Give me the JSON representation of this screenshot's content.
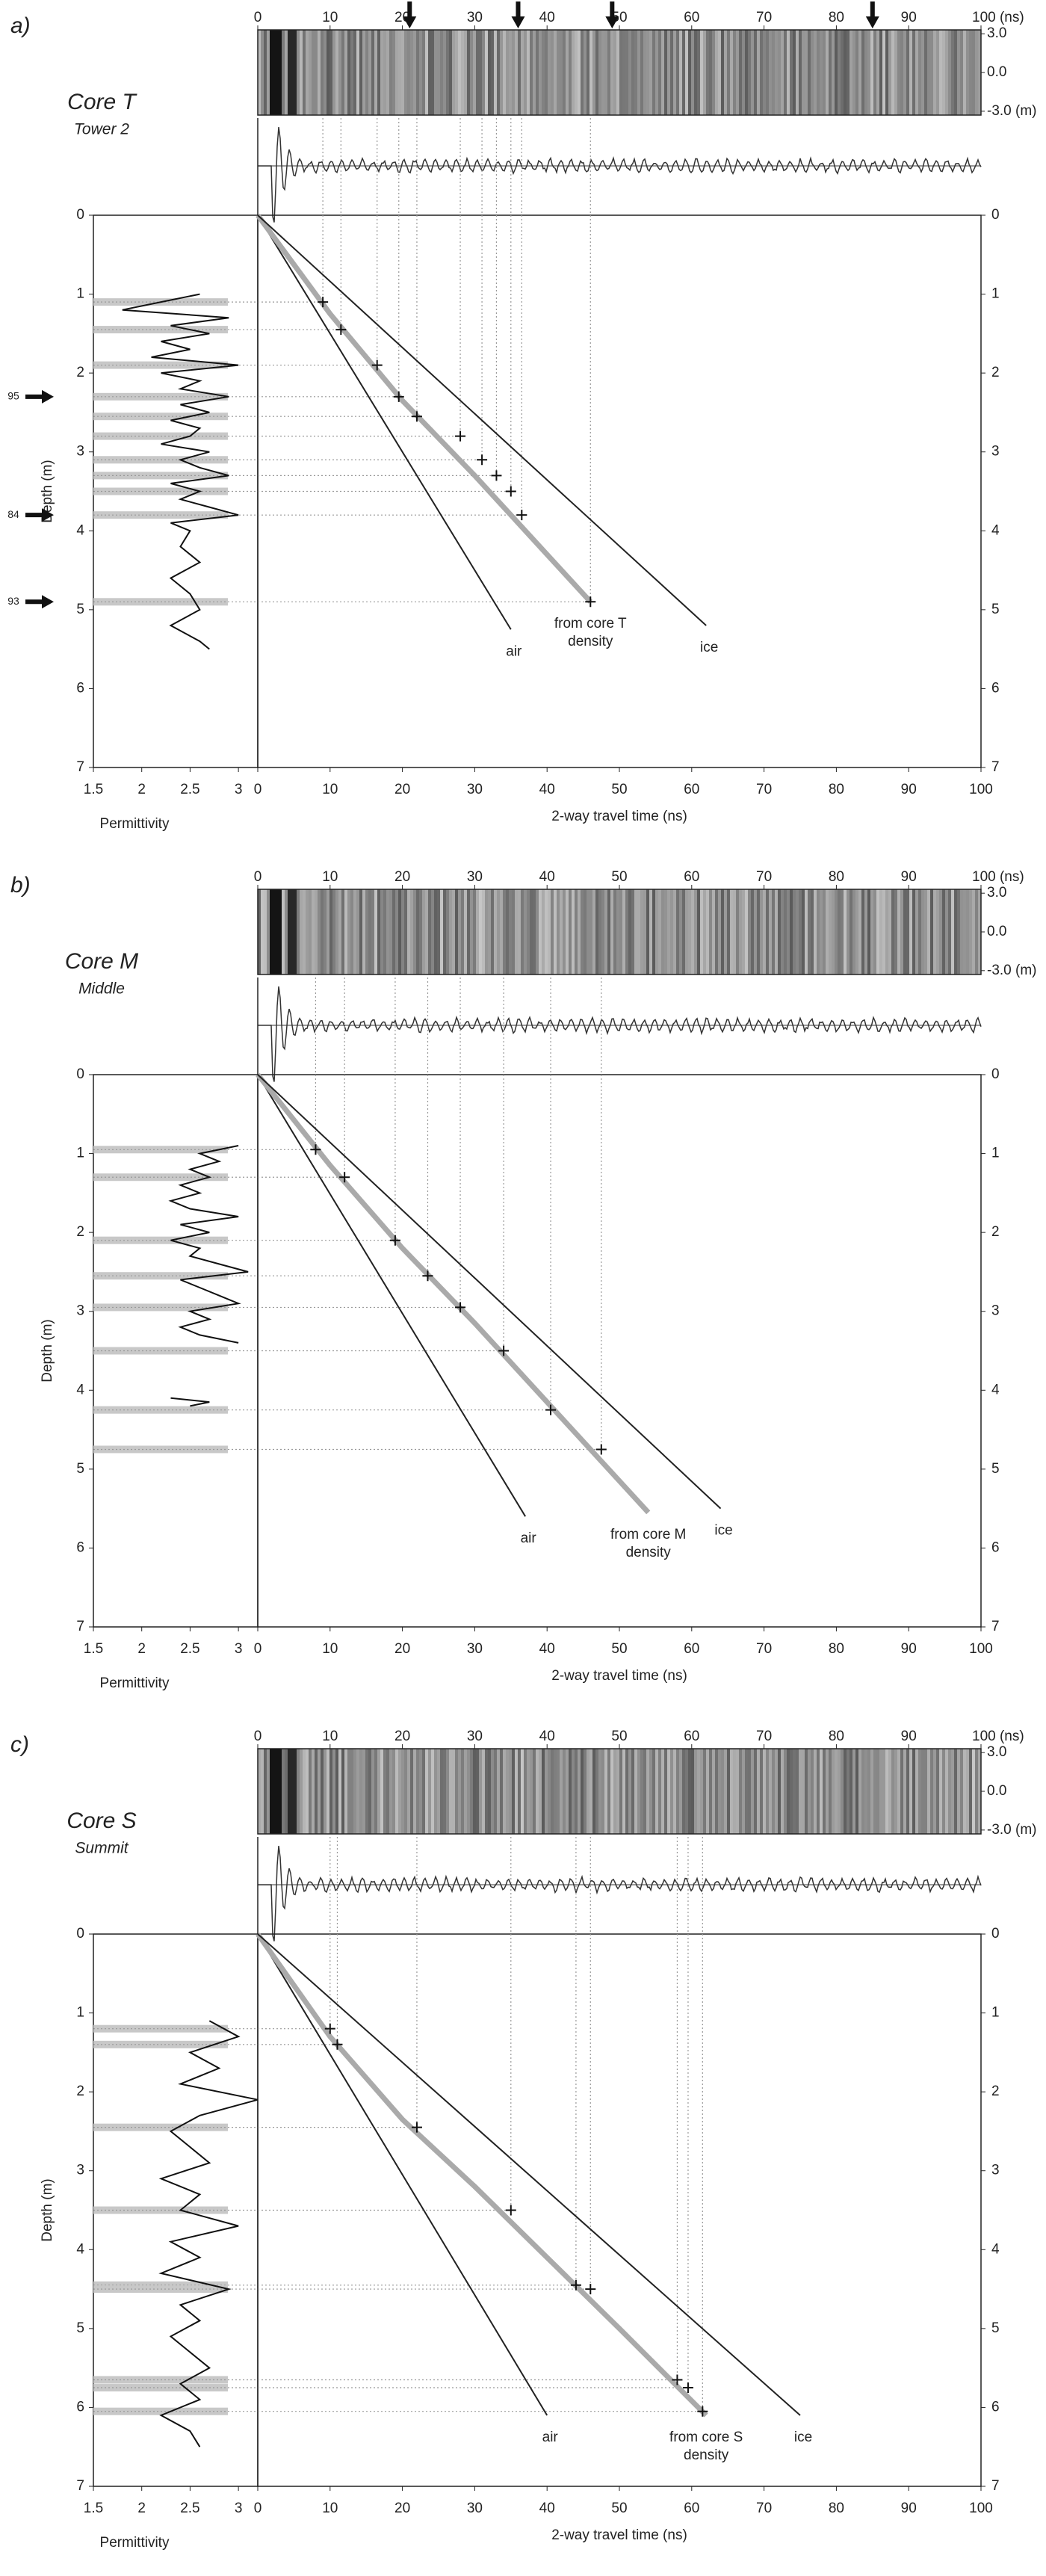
{
  "chart_data": [
    {
      "type": "radar-depth",
      "label": "a)",
      "title": "Core T",
      "subtitle": "Tower 2",
      "xlim": [
        0,
        100
      ],
      "xticks": [
        0,
        10,
        20,
        30,
        40,
        50,
        60,
        70,
        80,
        90,
        100
      ],
      "xlabel": "2-way travel time (ns)",
      "top_xticks": [
        0,
        10,
        20,
        30,
        40,
        50,
        60,
        70,
        80,
        90,
        {
          "value": 100,
          "label": "100 (ns)"
        }
      ],
      "amp_lim": [
        -3.3,
        3.3
      ],
      "amp_ticks": [
        {
          "value": 3,
          "label": "3.0"
        },
        {
          "value": 0,
          "label": "0.0"
        },
        {
          "value": -3,
          "label": "-3.0 (m)"
        }
      ],
      "ylim": [
        0,
        7
      ],
      "yticks": [
        0,
        1,
        2,
        3,
        4,
        5,
        6,
        7
      ],
      "ylabel": "Depth (m)",
      "perm_xlim": [
        1.5,
        3.2
      ],
      "perm_xticks": [
        1.5,
        2,
        2.5,
        3
      ],
      "perm_xlabel": "Permittivity",
      "series": [
        {
          "name": "air",
          "color": "#222222",
          "x": [
            0,
            35
          ],
          "y": [
            0,
            5.25
          ]
        },
        {
          "name": "from core T density",
          "color": "#aaaaaa",
          "x": [
            0,
            10,
            20,
            30,
            40,
            46
          ],
          "y": [
            0,
            1.25,
            2.35,
            3.3,
            4.3,
            4.9
          ]
        },
        {
          "name": "ice",
          "color": "#222222",
          "x": [
            0,
            62
          ],
          "y": [
            0,
            5.2
          ]
        }
      ],
      "picks": {
        "x": [
          9,
          11.5,
          16.5,
          19.5,
          22,
          28,
          31,
          33,
          35,
          36.5,
          46
        ],
        "y": [
          1.1,
          1.45,
          1.9,
          2.3,
          2.55,
          2.8,
          3.1,
          3.3,
          3.5,
          3.8,
          4.9
        ]
      },
      "permittivity": {
        "depth": [
          1.0,
          1.1,
          1.2,
          1.3,
          1.4,
          1.5,
          1.6,
          1.7,
          1.8,
          1.9,
          2.0,
          2.1,
          2.2,
          2.3,
          2.4,
          2.5,
          2.6,
          2.7,
          2.8,
          2.9,
          3.0,
          3.1,
          3.2,
          3.3,
          3.4,
          3.5,
          3.6,
          3.7,
          3.8,
          3.9,
          4.0,
          4.2,
          4.4,
          4.6,
          4.8,
          5.0,
          5.2,
          5.4,
          5.5
        ],
        "values": [
          2.6,
          2.2,
          1.8,
          2.9,
          2.3,
          2.7,
          2.2,
          2.5,
          2.1,
          3.0,
          2.2,
          2.6,
          2.4,
          2.9,
          2.4,
          2.7,
          2.3,
          2.6,
          2.5,
          2.2,
          2.7,
          2.4,
          2.6,
          2.9,
          2.3,
          2.6,
          2.4,
          2.7,
          3.0,
          2.3,
          2.5,
          2.4,
          2.6,
          2.3,
          2.5,
          2.6,
          2.3,
          2.6,
          2.7
        ]
      },
      "top_arrows": [
        21,
        36,
        49,
        85
      ],
      "depth_arrows": [
        {
          "depth": 2.3,
          "label": "95"
        },
        {
          "depth": 3.8,
          "label": "84"
        },
        {
          "depth": 4.9,
          "label": "93"
        }
      ]
    },
    {
      "type": "radar-depth",
      "label": "b)",
      "title": "Core M",
      "subtitle": "Middle",
      "xlim": [
        0,
        100
      ],
      "xticks": [
        0,
        10,
        20,
        30,
        40,
        50,
        60,
        70,
        80,
        90,
        100
      ],
      "xlabel": "2-way travel time (ns)",
      "top_xticks": [
        0,
        10,
        20,
        30,
        40,
        50,
        60,
        70,
        80,
        90,
        {
          "value": 100,
          "label": "100 (ns)"
        }
      ],
      "amp_lim": [
        -3.3,
        3.3
      ],
      "amp_ticks": [
        {
          "value": 3,
          "label": "3.0"
        },
        {
          "value": 0,
          "label": "0.0"
        },
        {
          "value": -3,
          "label": "-3.0 (m)"
        }
      ],
      "ylim": [
        0,
        7
      ],
      "yticks": [
        0,
        1,
        2,
        3,
        4,
        5,
        6,
        7
      ],
      "ylabel": "Depth (m)",
      "perm_xlim": [
        1.5,
        3.2
      ],
      "perm_xticks": [
        1.5,
        2,
        2.5,
        3
      ],
      "perm_xlabel": "Permittivity",
      "series": [
        {
          "name": "air",
          "color": "#222222",
          "x": [
            0,
            37
          ],
          "y": [
            0,
            5.6
          ]
        },
        {
          "name": "from core M density",
          "color": "#aaaaaa",
          "x": [
            0,
            10,
            20,
            30,
            40,
            54
          ],
          "y": [
            0,
            1.15,
            2.2,
            3.15,
            4.15,
            5.55
          ]
        },
        {
          "name": "ice",
          "color": "#222222",
          "x": [
            0,
            64
          ],
          "y": [
            0,
            5.5
          ]
        }
      ],
      "picks": {
        "x": [
          8,
          12,
          19,
          23.5,
          28,
          34,
          40.5,
          47.5
        ],
        "y": [
          0.95,
          1.3,
          2.1,
          2.55,
          2.95,
          3.5,
          4.25,
          4.75
        ]
      },
      "permittivity": {
        "depth": [
          0.9,
          1.0,
          1.1,
          1.2,
          1.3,
          1.4,
          1.5,
          1.6,
          1.7,
          1.8,
          1.9,
          2.0,
          2.1,
          2.2,
          2.3,
          2.4,
          2.5,
          2.6,
          2.7,
          2.8,
          2.9,
          3.0,
          3.1,
          3.2,
          3.3,
          3.4,
          3.7,
          4.1,
          4.15,
          4.2
        ],
        "values": [
          3.0,
          2.6,
          2.8,
          2.5,
          2.7,
          2.4,
          2.6,
          2.3,
          2.5,
          3.0,
          2.4,
          2.7,
          2.3,
          2.6,
          2.5,
          2.8,
          3.1,
          2.4,
          2.6,
          2.8,
          3.0,
          2.5,
          2.7,
          2.4,
          2.6,
          3.0,
          null,
          2.3,
          2.7,
          2.5
        ]
      }
    },
    {
      "type": "radar-depth",
      "label": "c)",
      "title": "Core S",
      "subtitle": "Summit",
      "xlim": [
        0,
        100
      ],
      "xticks": [
        0,
        10,
        20,
        30,
        40,
        50,
        60,
        70,
        80,
        90,
        100
      ],
      "xlabel": "2-way travel time (ns)",
      "top_xticks": [
        0,
        10,
        20,
        30,
        40,
        50,
        60,
        70,
        80,
        90,
        {
          "value": 100,
          "label": "100 (ns)"
        }
      ],
      "amp_lim": [
        -3.3,
        3.3
      ],
      "amp_ticks": [
        {
          "value": 3,
          "label": "3.0"
        },
        {
          "value": 0,
          "label": "0.0"
        },
        {
          "value": -3,
          "label": "-3.0 (m)"
        }
      ],
      "ylim": [
        0,
        7
      ],
      "yticks": [
        0,
        1,
        2,
        3,
        4,
        5,
        6,
        7
      ],
      "ylabel": "Depth (m)",
      "perm_xlim": [
        1.5,
        3.2
      ],
      "perm_xticks": [
        1.5,
        2,
        2.5,
        3
      ],
      "perm_xlabel": "Permittivity",
      "series": [
        {
          "name": "air",
          "color": "#222222",
          "x": [
            0,
            40
          ],
          "y": [
            0,
            6.1
          ]
        },
        {
          "name": "from core S density",
          "color": "#aaaaaa",
          "x": [
            0,
            10,
            20,
            30,
            40,
            50,
            62
          ],
          "y": [
            0,
            1.3,
            2.35,
            3.2,
            4.1,
            5.0,
            6.1
          ]
        },
        {
          "name": "ice",
          "color": "#222222",
          "x": [
            0,
            75
          ],
          "y": [
            0,
            6.1
          ]
        }
      ],
      "picks": {
        "x": [
          10,
          11,
          22,
          35,
          44,
          46,
          58,
          59.5,
          61.5
        ],
        "y": [
          1.2,
          1.4,
          2.45,
          3.5,
          4.45,
          4.5,
          5.65,
          5.75,
          6.05
        ]
      },
      "permittivity": {
        "depth": [
          1.1,
          1.3,
          1.5,
          1.7,
          1.9,
          2.1,
          2.3,
          2.5,
          2.7,
          2.9,
          3.1,
          3.3,
          3.5,
          3.7,
          3.9,
          4.1,
          4.3,
          4.5,
          4.7,
          4.9,
          5.1,
          5.3,
          5.5,
          5.7,
          5.9,
          6.1,
          6.3,
          6.5
        ],
        "values": [
          2.7,
          3.0,
          2.5,
          2.8,
          2.4,
          3.2,
          2.6,
          2.3,
          2.5,
          2.7,
          2.2,
          2.6,
          2.4,
          3.0,
          2.3,
          2.6,
          2.2,
          2.9,
          2.4,
          2.6,
          2.3,
          2.5,
          2.7,
          2.4,
          2.6,
          2.2,
          2.5,
          2.6
        ]
      }
    }
  ]
}
